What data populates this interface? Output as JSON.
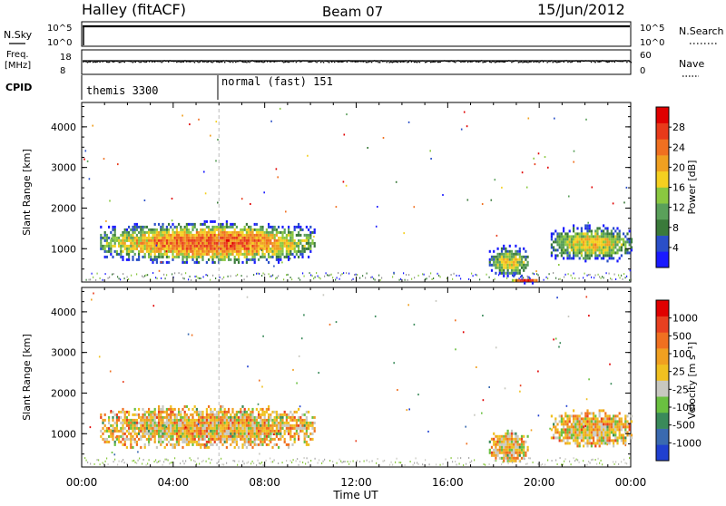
{
  "header": {
    "station": "Halley (fitACF)",
    "beam": "Beam 07",
    "date": "15/Jun/2012"
  },
  "top_panels": {
    "nsky_label": "N.Sky",
    "nsky_ticks": [
      "10^5",
      "10^0"
    ],
    "nsearch_label": "N.Search",
    "nsearch_ticks": [
      "10^5",
      "10^0"
    ],
    "freq_label_1": "Freq.",
    "freq_label_2": "[MHz]",
    "freq_ticks": [
      "18",
      "8"
    ],
    "nave_label": "Nave",
    "nave_ticks": [
      "60",
      "0"
    ],
    "cpid_label": "CPID",
    "cpid_segments": [
      {
        "start_hour": 0,
        "label": "themis 3300"
      },
      {
        "start_hour": 6,
        "label": "normal (fast) 151"
      }
    ]
  },
  "axes": {
    "x_ticks": [
      "00:00",
      "04:00",
      "08:00",
      "12:00",
      "16:00",
      "20:00",
      "00:00"
    ],
    "xlabel": "Time UT",
    "ylabel": "Slant Range [km]",
    "y_ticks": [
      "1000",
      "2000",
      "3000",
      "4000"
    ]
  },
  "colorbars": {
    "power": {
      "label": "Power [dB]",
      "ticks": [
        "28",
        "24",
        "20",
        "16",
        "12",
        "8",
        "4"
      ],
      "colors": [
        "#1a1aff",
        "#2a4fc8",
        "#3a7a3a",
        "#5aa05a",
        "#8ac840",
        "#f5d020",
        "#f0a020",
        "#f07020",
        "#e83a1a",
        "#e00000"
      ]
    },
    "velocity": {
      "label": "Velocity [m s⁻¹]",
      "ticks": [
        "1000",
        "500",
        "100",
        "25",
        "-25",
        "-100",
        "-500",
        "-1000"
      ],
      "colors": [
        "#2040d0",
        "#3a6ab0",
        "#3a8a5a",
        "#6ac040",
        "#c8c8c0",
        "#f0c020",
        "#f0a020",
        "#f07020",
        "#e84020",
        "#e00000"
      ]
    }
  },
  "chart_data": {
    "type": "heatmap",
    "x_range_hours": [
      0,
      24
    ],
    "y_range_km": [
      180,
      4600
    ],
    "marker_hour": 6,
    "frequency_mhz": {
      "ylim": [
        8,
        18
      ],
      "typical": 13.5
    },
    "power_regions": [
      {
        "t0": 0.8,
        "t1": 10.2,
        "r0": 650,
        "r1": 1700,
        "peak_db": 24
      },
      {
        "t0": 17.8,
        "t1": 19.5,
        "r0": 300,
        "r1": 1100,
        "peak_db": 16
      },
      {
        "t0": 18.8,
        "t1": 20.0,
        "r0": 180,
        "r1": 320,
        "peak_db": 28
      },
      {
        "t0": 20.5,
        "t1": 24.0,
        "r0": 700,
        "r1": 1600,
        "peak_db": 18
      }
    ],
    "velocity_regions": [
      {
        "t0": 0.8,
        "t1": 10.2,
        "r0": 650,
        "r1": 1700,
        "typical_ms": -100
      },
      {
        "t0": 17.8,
        "t1": 19.5,
        "r0": 300,
        "r1": 1100,
        "typical_ms": -100
      },
      {
        "t0": 20.5,
        "t1": 24.0,
        "r0": 700,
        "r1": 1600,
        "typical_ms": -100
      }
    ]
  }
}
